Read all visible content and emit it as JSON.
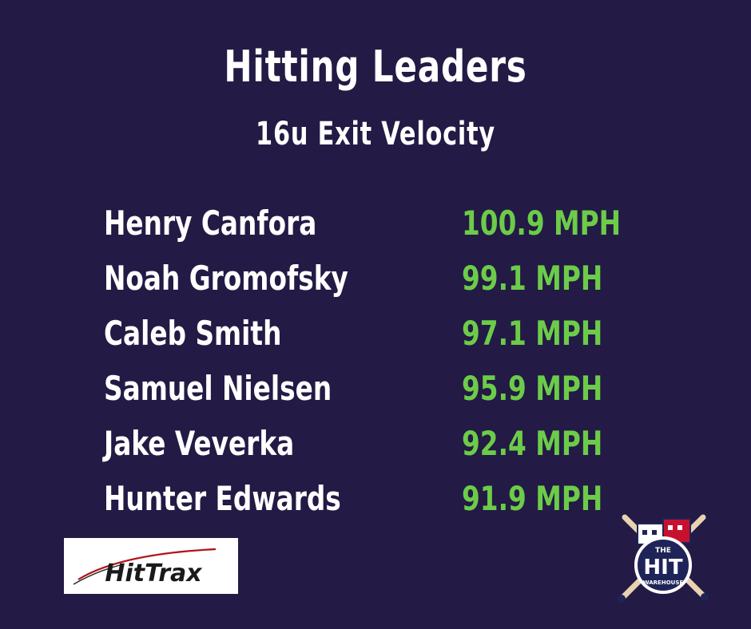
{
  "header": {
    "title": "Hitting Leaders",
    "subtitle": "16u Exit Velocity"
  },
  "leaders": [
    {
      "name": "Henry Canfora",
      "value": "100.9 MPH"
    },
    {
      "name": "Noah Gromofsky",
      "value": "99.1 MPH"
    },
    {
      "name": "Caleb Smith",
      "value": "97.1 MPH"
    },
    {
      "name": "Samuel Nielsen",
      "value": "95.9 MPH"
    },
    {
      "name": "Jake Veverka",
      "value": "92.4 MPH"
    },
    {
      "name": "Hunter Edwards",
      "value": "91.9 MPH"
    }
  ],
  "logos": {
    "hittrax": {
      "text": "HitTrax"
    },
    "warehouse": {
      "line1": "THE",
      "line2": "HIT",
      "line3": "WAREHOUSE"
    }
  },
  "colors": {
    "background": "#231a45",
    "title": "#ffffff",
    "name": "#ffffff",
    "value": "#6ccc49",
    "hittrax_arc": "#b3121c",
    "warehouse_red": "#c8102e",
    "warehouse_navy": "#1f2458"
  }
}
